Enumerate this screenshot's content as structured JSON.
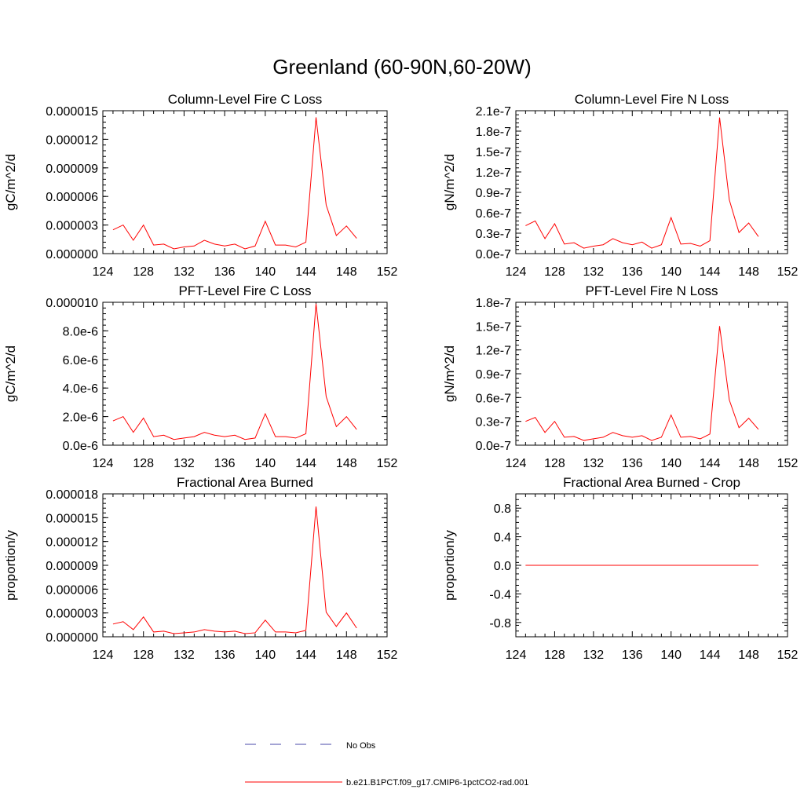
{
  "figure": {
    "title": "Greenland (60-90N,60-20W)",
    "legend": [
      {
        "label": "No Obs",
        "color": "#4a4aa8",
        "dash": "dashed"
      },
      {
        "label": "b.e21.B1PCT.f09_g17.CMIP6-1pctCO2-rad.001",
        "color": "#ff0000",
        "dash": "solid"
      }
    ]
  },
  "chart_data": [
    {
      "type": "line",
      "title": "Column-Level Fire C Loss",
      "ylabel": "gC/m^2/d",
      "xlim": [
        124,
        152
      ],
      "ylim": [
        0,
        1.5e-05
      ],
      "xticks": [
        "124",
        "128",
        "132",
        "136",
        "140",
        "144",
        "148",
        "152"
      ],
      "yticks": [
        "0.000000",
        "0.000003",
        "0.000006",
        "0.000009",
        "0.000012",
        "0.000015"
      ],
      "x": [
        125,
        126,
        127,
        128,
        129,
        130,
        131,
        132,
        133,
        134,
        135,
        136,
        137,
        138,
        139,
        140,
        141,
        142,
        143,
        144,
        145,
        146,
        147,
        148,
        149
      ],
      "series": [
        {
          "color": "#ff0000",
          "values": [
            2.5e-06,
            3e-06,
            1.4e-06,
            3e-06,
            9e-07,
            1e-06,
            5e-07,
            7e-07,
            8e-07,
            1.4e-06,
            1e-06,
            8e-07,
            1e-06,
            5e-07,
            8e-07,
            3.4e-06,
            9e-07,
            9e-07,
            7e-07,
            1.2e-06,
            1.43e-05,
            5.1e-06,
            1.9e-06,
            2.9e-06,
            1.6e-06
          ]
        }
      ]
    },
    {
      "type": "line",
      "title": "Column-Level Fire N Loss",
      "ylabel": "gN/m^2/d",
      "xlim": [
        124,
        152
      ],
      "ylim": [
        0,
        2.1e-07
      ],
      "xticks": [
        "124",
        "128",
        "132",
        "136",
        "140",
        "144",
        "148",
        "152"
      ],
      "yticks": [
        "0.0e-7",
        "0.3e-7",
        "0.6e-7",
        "0.9e-7",
        "1.2e-7",
        "1.5e-7",
        "1.8e-7",
        "2.1e-7"
      ],
      "x": [
        125,
        126,
        127,
        128,
        129,
        130,
        131,
        132,
        133,
        134,
        135,
        136,
        137,
        138,
        139,
        140,
        141,
        142,
        143,
        144,
        145,
        146,
        147,
        148,
        149
      ],
      "series": [
        {
          "color": "#ff0000",
          "values": [
            4.1e-08,
            4.8e-08,
            2.2e-08,
            4.4e-08,
            1.4e-08,
            1.6e-08,
            8e-09,
            1.1e-08,
            1.3e-08,
            2.2e-08,
            1.6e-08,
            1.3e-08,
            1.7e-08,
            8e-09,
            1.3e-08,
            5.3e-08,
            1.4e-08,
            1.5e-08,
            1.1e-08,
            1.9e-08,
            2e-07,
            7.9e-08,
            3.1e-08,
            4.5e-08,
            2.5e-08
          ]
        }
      ]
    },
    {
      "type": "line",
      "title": "PFT-Level Fire C Loss",
      "ylabel": "gC/m^2/d",
      "xlim": [
        124,
        152
      ],
      "ylim": [
        0,
        1e-05
      ],
      "xticks": [
        "124",
        "128",
        "132",
        "136",
        "140",
        "144",
        "148",
        "152"
      ],
      "yticks": [
        "0.0e-6",
        "2.0e-6",
        "4.0e-6",
        "6.0e-6",
        "8.0e-6",
        "0.000010"
      ],
      "x": [
        125,
        126,
        127,
        128,
        129,
        130,
        131,
        132,
        133,
        134,
        135,
        136,
        137,
        138,
        139,
        140,
        141,
        142,
        143,
        144,
        145,
        146,
        147,
        148,
        149
      ],
      "series": [
        {
          "color": "#ff0000",
          "values": [
            1.7e-06,
            2e-06,
            9e-07,
            1.9e-06,
            6e-07,
            7e-07,
            4e-07,
            5e-07,
            6e-07,
            9e-07,
            7e-07,
            6e-07,
            7e-07,
            4e-07,
            5e-07,
            2.2e-06,
            6e-07,
            6e-07,
            5e-07,
            8e-07,
            9.9e-06,
            3.4e-06,
            1.3e-06,
            2e-06,
            1.1e-06
          ]
        }
      ]
    },
    {
      "type": "line",
      "title": "PFT-Level Fire N Loss",
      "ylabel": "gN/m^2/d",
      "xlim": [
        124,
        152
      ],
      "ylim": [
        0,
        1.8e-07
      ],
      "xticks": [
        "124",
        "128",
        "132",
        "136",
        "140",
        "144",
        "148",
        "152"
      ],
      "yticks": [
        "0.0e-7",
        "0.3e-7",
        "0.6e-7",
        "0.9e-7",
        "1.2e-7",
        "1.5e-7",
        "1.8e-7"
      ],
      "x": [
        125,
        126,
        127,
        128,
        129,
        130,
        131,
        132,
        133,
        134,
        135,
        136,
        137,
        138,
        139,
        140,
        141,
        142,
        143,
        144,
        145,
        146,
        147,
        148,
        149
      ],
      "series": [
        {
          "color": "#ff0000",
          "values": [
            3e-08,
            3.5e-08,
            1.6e-08,
            3e-08,
            1e-08,
            1.1e-08,
            6e-09,
            8e-09,
            1e-08,
            1.6e-08,
            1.2e-08,
            1e-08,
            1.2e-08,
            6e-09,
            1e-08,
            3.8e-08,
            1e-08,
            1.1e-08,
            8e-09,
            1.4e-08,
            1.5e-07,
            5.7e-08,
            2.2e-08,
            3.4e-08,
            2e-08
          ]
        }
      ]
    },
    {
      "type": "line",
      "title": "Fractional Area Burned",
      "ylabel": "proportion/y",
      "xlim": [
        124,
        152
      ],
      "ylim": [
        0,
        1.8e-05
      ],
      "xticks": [
        "124",
        "128",
        "132",
        "136",
        "140",
        "144",
        "148",
        "152"
      ],
      "yticks": [
        "0.000000",
        "0.000003",
        "0.000006",
        "0.000009",
        "0.000012",
        "0.000015",
        "0.000018"
      ],
      "x": [
        125,
        126,
        127,
        128,
        129,
        130,
        131,
        132,
        133,
        134,
        135,
        136,
        137,
        138,
        139,
        140,
        141,
        142,
        143,
        144,
        145,
        146,
        147,
        148,
        149
      ],
      "series": [
        {
          "color": "#ff0000",
          "values": [
            1.6e-06,
            1.9e-06,
            9e-07,
            2.5e-06,
            6e-07,
            7e-07,
            4e-07,
            5e-07,
            6e-07,
            9e-07,
            7e-07,
            6e-07,
            7e-07,
            4e-07,
            5e-07,
            2.1e-06,
            6e-07,
            6e-07,
            5e-07,
            8e-07,
            1.64e-05,
            3.1e-06,
            1.3e-06,
            3e-06,
            1.1e-06
          ]
        }
      ]
    },
    {
      "type": "line",
      "title": "Fractional Area Burned - Crop",
      "ylabel": "proportion/y",
      "xlim": [
        124,
        152
      ],
      "ylim": [
        -1,
        1
      ],
      "xticks": [
        "124",
        "128",
        "132",
        "136",
        "140",
        "144",
        "148",
        "152"
      ],
      "yticks": [
        "-0.8",
        "-0.4",
        "0.0",
        "0.4",
        "0.8"
      ],
      "ytick_values": [
        -0.8,
        -0.4,
        0,
        0.4,
        0.8
      ],
      "x": [
        125,
        149
      ],
      "series": [
        {
          "color": "#ff0000",
          "values": [
            0,
            0
          ]
        }
      ]
    }
  ]
}
